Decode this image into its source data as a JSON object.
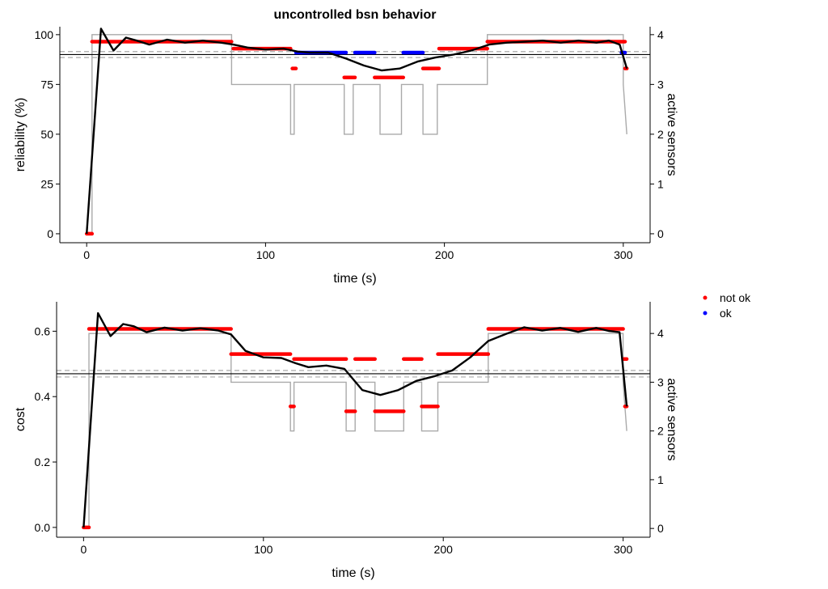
{
  "figure": {
    "title": "uncontrolled bsn behavior"
  },
  "legend": {
    "entries": [
      {
        "label": "not ok",
        "color": "#ff0000"
      },
      {
        "label": "ok",
        "color": "#0000ff"
      }
    ]
  },
  "colors": {
    "not_ok": "#ff0000",
    "ok": "#0000ff",
    "smooth": "#000000",
    "active_sensors": "#aaaaaa",
    "reference": "#000000",
    "reference_band": "#aaaaaa"
  },
  "chart_data": [
    {
      "type": "line",
      "title": "uncontrolled bsn behavior",
      "xlabel": "time (s)",
      "ylabel": "reliability (%)",
      "y2label": "active sensors",
      "xlim": [
        -15,
        315
      ],
      "ylim": [
        -4.5,
        104
      ],
      "y2lim": [
        -0.18,
        4.16
      ],
      "x_ticks": [
        0,
        100,
        200,
        300
      ],
      "y_ticks": [
        0,
        25,
        50,
        75,
        100
      ],
      "y2_ticks": [
        0,
        1,
        2,
        3,
        4
      ],
      "reference_line": 90,
      "reference_band": [
        88.5,
        91.5
      ],
      "active_sensors": {
        "x": [
          0,
          3,
          3,
          81,
          81,
          114,
          114,
          116,
          116,
          119,
          119,
          144,
          144,
          149,
          149,
          152,
          152,
          159,
          159,
          164,
          164,
          176,
          176,
          180,
          180,
          188,
          188,
          196,
          196,
          198,
          198,
          224,
          224,
          300,
          300,
          302
        ],
        "y": [
          0,
          0,
          4,
          4,
          3,
          3,
          2,
          2,
          3,
          3,
          3,
          3,
          2,
          2,
          3,
          3,
          3,
          3,
          3,
          3,
          2,
          2,
          3,
          3,
          3,
          3,
          2,
          2,
          3,
          3,
          3,
          3,
          4,
          4,
          3,
          2
        ]
      },
      "smooth": {
        "x": [
          0,
          8,
          15,
          22,
          28,
          35,
          45,
          55,
          65,
          75,
          82,
          90,
          100,
          110,
          118,
          125,
          135,
          145,
          155,
          165,
          175,
          185,
          195,
          205,
          215,
          225,
          235,
          245,
          255,
          265,
          275,
          285,
          292,
          298,
          302
        ],
        "y": [
          0,
          103,
          92,
          98.5,
          97,
          95,
          97.5,
          96,
          97,
          96,
          95,
          93.5,
          92.5,
          93,
          91.5,
          91,
          91,
          88,
          84.5,
          82,
          83,
          86.5,
          88.5,
          90,
          92,
          95,
          96,
          96.5,
          97,
          96,
          97,
          96,
          97,
          95,
          83
        ]
      },
      "segments": [
        {
          "status": "not ok",
          "x": [
            0,
            3
          ],
          "y": 0
        },
        {
          "status": "not ok",
          "x": [
            3,
            81
          ],
          "y": 96.5
        },
        {
          "status": "not ok",
          "x": [
            82,
            114
          ],
          "y": 93
        },
        {
          "status": "not ok",
          "x": [
            115,
            117
          ],
          "y": 83
        },
        {
          "status": "ok",
          "x": [
            117,
            145
          ],
          "y": 91
        },
        {
          "status": "not ok",
          "x": [
            144,
            150
          ],
          "y": 78.5
        },
        {
          "status": "ok",
          "x": [
            150,
            161
          ],
          "y": 91
        },
        {
          "status": "not ok",
          "x": [
            161,
            177
          ],
          "y": 78.5
        },
        {
          "status": "ok",
          "x": [
            177,
            188
          ],
          "y": 91
        },
        {
          "status": "not ok",
          "x": [
            188,
            197
          ],
          "y": 83
        },
        {
          "status": "not ok",
          "x": [
            197,
            224
          ],
          "y": 93
        },
        {
          "status": "not ok",
          "x": [
            224,
            301
          ],
          "y": 96.5
        },
        {
          "status": "ok",
          "x": [
            299,
            301
          ],
          "y": 91
        },
        {
          "status": "not ok",
          "x": [
            301,
            302
          ],
          "y": 83
        }
      ]
    },
    {
      "type": "line",
      "title": "",
      "xlabel": "time (s)",
      "ylabel": "cost",
      "y2label": "active sensors",
      "xlim": [
        -15,
        315
      ],
      "ylim": [
        -0.03,
        0.69
      ],
      "y2lim": [
        -0.18,
        4.65
      ],
      "x_ticks": [
        0,
        100,
        200,
        300
      ],
      "y_ticks": [
        0.0,
        0.2,
        0.4,
        0.6
      ],
      "y_tick_labels": [
        "0.0",
        "0.2",
        "0.4",
        "0.6"
      ],
      "y2_ticks": [
        0,
        1,
        2,
        3,
        4
      ],
      "reference_line": 0.47,
      "reference_band": [
        0.46,
        0.48
      ],
      "active_sensors": {
        "x": [
          0,
          3,
          3,
          82,
          82,
          115,
          115,
          117,
          117,
          146,
          146,
          151,
          151,
          162,
          162,
          178,
          178,
          188,
          188,
          197,
          197,
          225,
          225,
          300,
          300,
          302
        ],
        "y": [
          0,
          0,
          4,
          4,
          3,
          3,
          2,
          2,
          3,
          3,
          2,
          2,
          3,
          3,
          2,
          2,
          3,
          3,
          2,
          2,
          3,
          3,
          4,
          4,
          3,
          2
        ]
      },
      "smooth": {
        "x": [
          0,
          8,
          15,
          22,
          28,
          35,
          45,
          55,
          65,
          75,
          82,
          90,
          100,
          110,
          118,
          125,
          135,
          145,
          155,
          165,
          175,
          185,
          195,
          205,
          215,
          225,
          235,
          245,
          255,
          265,
          275,
          285,
          292,
          298,
          302
        ],
        "y": [
          0,
          0.655,
          0.585,
          0.622,
          0.615,
          0.597,
          0.611,
          0.602,
          0.609,
          0.602,
          0.59,
          0.54,
          0.52,
          0.518,
          0.502,
          0.49,
          0.495,
          0.485,
          0.42,
          0.405,
          0.42,
          0.448,
          0.462,
          0.48,
          0.52,
          0.57,
          0.592,
          0.612,
          0.602,
          0.61,
          0.598,
          0.61,
          0.601,
          0.597,
          0.37
        ]
      },
      "segments": [
        {
          "status": "not ok",
          "x": [
            0,
            3
          ],
          "y": 0
        },
        {
          "status": "not ok",
          "x": [
            3,
            82
          ],
          "y": 0.607
        },
        {
          "status": "not ok",
          "x": [
            82,
            115
          ],
          "y": 0.53
        },
        {
          "status": "not ok",
          "x": [
            115,
            117
          ],
          "y": 0.37
        },
        {
          "status": "not ok",
          "x": [
            117,
            146
          ],
          "y": 0.515
        },
        {
          "status": "not ok",
          "x": [
            146,
            151
          ],
          "y": 0.355
        },
        {
          "status": "not ok",
          "x": [
            151,
            162
          ],
          "y": 0.515
        },
        {
          "status": "not ok",
          "x": [
            162,
            178
          ],
          "y": 0.355
        },
        {
          "status": "not ok",
          "x": [
            178,
            188
          ],
          "y": 0.515
        },
        {
          "status": "not ok",
          "x": [
            188,
            197
          ],
          "y": 0.37
        },
        {
          "status": "not ok",
          "x": [
            197,
            225
          ],
          "y": 0.53
        },
        {
          "status": "not ok",
          "x": [
            225,
            300
          ],
          "y": 0.607
        },
        {
          "status": "not ok",
          "x": [
            300,
            302
          ],
          "y": 0.515
        },
        {
          "status": "not ok",
          "x": [
            301,
            302
          ],
          "y": 0.37
        }
      ]
    }
  ]
}
